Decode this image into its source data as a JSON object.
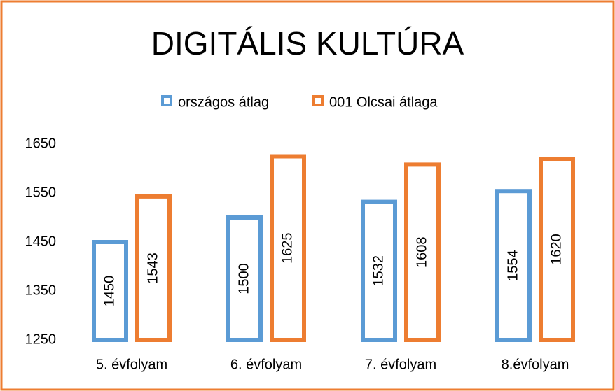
{
  "chart_data": {
    "type": "bar",
    "title": "DIGITÁLIS KULTÚRA",
    "categories": [
      "5. évfolyam",
      "6. évfolyam",
      "7. évfolyam",
      "8.évfolyam"
    ],
    "series": [
      {
        "name": "országos átlag",
        "color": "#5b9bd5",
        "values": [
          1450,
          1500,
          1532,
          1554
        ]
      },
      {
        "name": "001 Olcsai átlaga",
        "color": "#ed7d31",
        "values": [
          1543,
          1625,
          1608,
          1620
        ]
      }
    ],
    "ylim": [
      1250,
      1650
    ],
    "yticks": [
      1250,
      1350,
      1450,
      1550,
      1650
    ],
    "grid": false,
    "legend": "top"
  }
}
